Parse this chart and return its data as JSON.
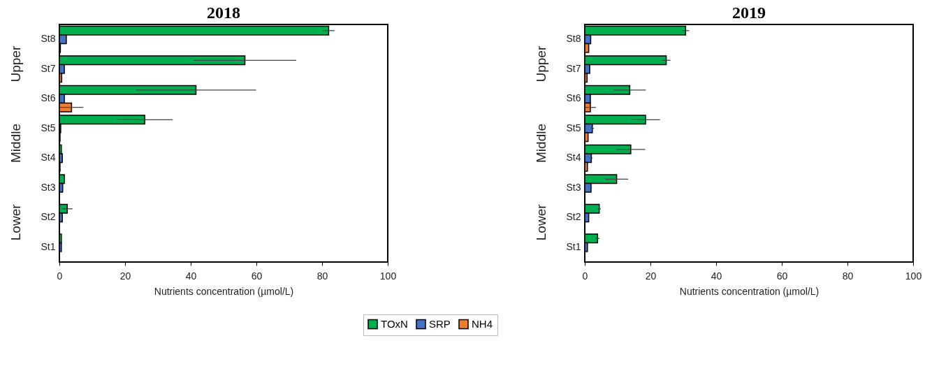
{
  "chart_data": [
    {
      "type": "bar",
      "orientation": "horizontal",
      "title": "2018",
      "xlabel": "Nutrients concentration (µmol/L)",
      "categories": [
        "St8",
        "St7",
        "St6",
        "St5",
        "St4",
        "St3",
        "St2",
        "St1"
      ],
      "series": [
        {
          "name": "TOxN",
          "color": "#00b050",
          "values": [
            82,
            56.5,
            41.6,
            26,
            0.6,
            1.5,
            2.4,
            0.6
          ],
          "errors": [
            1.8,
            15.6,
            18.3,
            8.5,
            null,
            null,
            1.6,
            null
          ]
        },
        {
          "name": "SRP",
          "color": "#4472c4",
          "values": [
            2.1,
            1.5,
            1.5,
            0.4,
            0.9,
            1,
            0.9,
            0.6
          ],
          "errors": [
            null,
            null,
            null,
            null,
            null,
            0.3,
            null,
            null
          ]
        },
        {
          "name": "NH4",
          "color": "#ed7d31",
          "values": [
            0.3,
            0.7,
            3.7,
            0.2,
            0.2,
            null,
            null,
            null
          ],
          "errors": [
            null,
            null,
            3.6,
            null,
            null,
            null,
            null,
            null
          ]
        }
      ],
      "xlim": [
        0,
        100
      ],
      "xticks": [
        0,
        20,
        40,
        60,
        80,
        100
      ],
      "legend": "bottom",
      "annotations": [
        "Upper",
        "Middle",
        "Lower"
      ]
    },
    {
      "type": "bar",
      "orientation": "horizontal",
      "title": "2019",
      "xlabel": "Nutrients concentration (µmol/L)",
      "categories": [
        "St8",
        "St7",
        "St6",
        "St5",
        "St4",
        "St3",
        "St2",
        "St1"
      ],
      "series": [
        {
          "name": "TOxN",
          "color": "#00b050",
          "values": [
            30.7,
            24.8,
            13.7,
            18.5,
            14,
            9.7,
            4.4,
            3.9
          ],
          "errors": [
            1.1,
            1.3,
            4.9,
            4.4,
            4.4,
            3.5,
            0.5,
            0.6
          ]
        },
        {
          "name": "SRP",
          "color": "#4472c4",
          "values": [
            1.8,
            1.5,
            1.7,
            2.3,
            2,
            1.9,
            1.2,
            0.8
          ],
          "errors": [
            null,
            null,
            null,
            0.5,
            0.4,
            0.3,
            null,
            null
          ]
        },
        {
          "name": "NH4",
          "color": "#ed7d31",
          "values": [
            1.2,
            0.7,
            1.7,
            1,
            0.8,
            null,
            null,
            null
          ],
          "errors": [
            null,
            null,
            1.7,
            null,
            null,
            null,
            null,
            null
          ]
        }
      ],
      "xlim": [
        0,
        100
      ],
      "xticks": [
        0,
        20,
        40,
        60,
        80,
        100
      ],
      "annotations": [
        "Upper",
        "Middle",
        "Lower"
      ]
    }
  ]
}
